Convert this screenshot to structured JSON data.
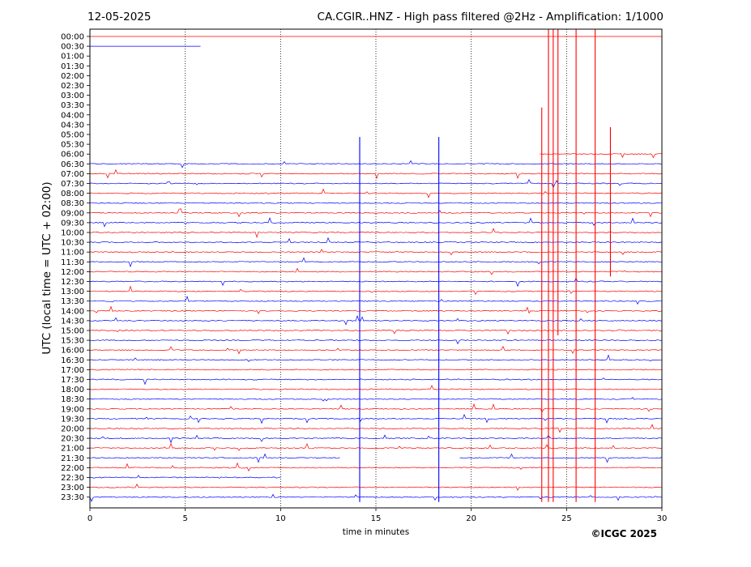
{
  "header": {
    "date": "12-05-2025",
    "title": "CA.CGIR..HNZ - High pass filtered @2Hz - Amplification: 1/1000"
  },
  "footer": {
    "copyright": "©ICGC 2025"
  },
  "chart_data": {
    "type": "line",
    "title": "CA.CGIR..HNZ - High pass filtered @2Hz - Amplification: 1/1000",
    "xlabel": "time in minutes",
    "ylabel": "UTC (local time = UTC + 02:00)",
    "xlim": [
      0,
      30
    ],
    "xticks": [
      "0",
      "5",
      "10",
      "15",
      "20",
      "25",
      "30"
    ],
    "grid": "vertical dotted lines at 5-minute intervals",
    "row_labels": [
      "00:00",
      "00:30",
      "01:00",
      "01:30",
      "02:00",
      "02:30",
      "03:00",
      "03:30",
      "04:00",
      "04:30",
      "05:00",
      "05:30",
      "06:00",
      "06:30",
      "07:00",
      "07:30",
      "08:00",
      "08:30",
      "09:00",
      "09:30",
      "10:00",
      "10:30",
      "11:00",
      "11:30",
      "12:00",
      "12:30",
      "13:00",
      "13:30",
      "14:00",
      "14:30",
      "15:00",
      "15:30",
      "16:00",
      "16:30",
      "17:00",
      "17:30",
      "18:00",
      "18:30",
      "19:00",
      "19:30",
      "20:00",
      "20:30",
      "21:00",
      "21:30",
      "22:00",
      "22:30",
      "23:00",
      "23:30"
    ],
    "trace_colors": [
      "#ff0000",
      "#0000ff"
    ],
    "trace_extents": [
      {
        "row": "00:00",
        "start": 0,
        "end": 30
      },
      {
        "row": "00:30",
        "start": 0,
        "end": 5.8
      },
      {
        "row": "06:00",
        "start": 23.6,
        "end": 30
      },
      {
        "row": "21:30",
        "start": 0,
        "end": 13.1
      },
      {
        "row": "21:30",
        "start": 19.4,
        "end": 30
      },
      {
        "row": "22:30",
        "start": 0,
        "end": 10
      }
    ],
    "event_spikes": [
      {
        "minute": 14.15,
        "from_row": "05:30",
        "to_row": "23:30",
        "color": "#0000ff"
      },
      {
        "minute": 18.3,
        "from_row": "05:30",
        "to_row": "23:30",
        "color": "#0000ff"
      },
      {
        "minute": 23.7,
        "from_row": "04:00",
        "to_row": "23:30",
        "color": "#ff0000"
      },
      {
        "minute": 24.05,
        "from_row": "00:00",
        "to_row": "23:30",
        "color": "#ff0000"
      },
      {
        "minute": 24.3,
        "from_row": "00:00",
        "to_row": "23:30",
        "color": "#ff0000"
      },
      {
        "minute": 24.55,
        "from_row": "00:00",
        "to_row": "15:00",
        "color": "#ff0000"
      },
      {
        "minute": 25.5,
        "from_row": "00:00",
        "to_row": "23:30",
        "color": "#ff0000"
      },
      {
        "minute": 26.5,
        "from_row": "00:00",
        "to_row": "23:30",
        "color": "#ff0000"
      },
      {
        "minute": 27.3,
        "from_row": "05:00",
        "to_row": "12:00",
        "color": "#ff0000"
      }
    ]
  }
}
